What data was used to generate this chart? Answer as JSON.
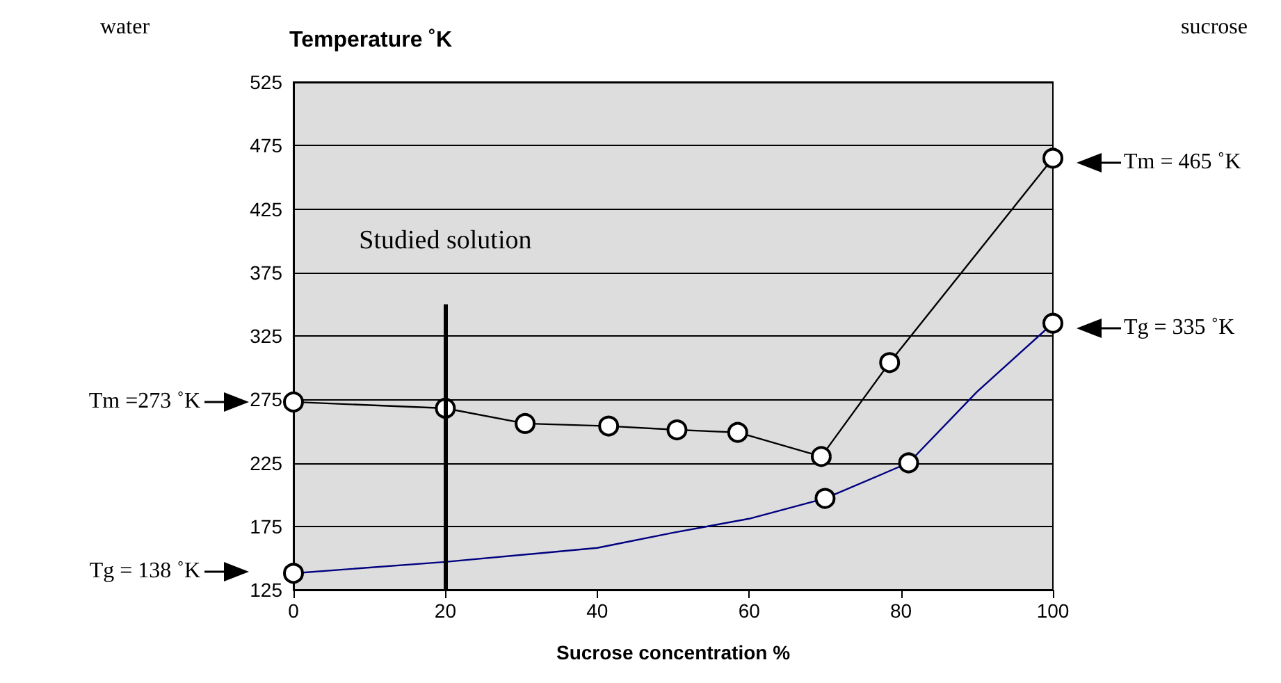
{
  "chart_data": {
    "type": "line",
    "ylabel": "Temperature ˚K",
    "xlabel": "Sucrose concentration %",
    "xlim": [
      0,
      100
    ],
    "xticks": [
      0,
      20,
      40,
      60,
      80,
      100
    ],
    "ylim": [
      125,
      525
    ],
    "yticks": [
      125,
      175,
      225,
      275,
      325,
      375,
      425,
      475,
      525
    ],
    "grid": "y",
    "series": [
      {
        "color": "#000000",
        "marker": "circle",
        "x": [
          0,
          20,
          30.5,
          41.5,
          50.5,
          58.5,
          69.5,
          78.5,
          100
        ],
        "values": [
          273,
          268,
          256,
          254,
          251,
          249,
          230,
          304,
          465
        ]
      },
      {
        "color": "#000080",
        "marker": "none",
        "x": [
          0,
          20,
          40,
          50,
          60,
          70,
          81,
          90,
          100
        ],
        "values": [
          138,
          147,
          158,
          170,
          181,
          197,
          225,
          281,
          335
        ]
      },
      {
        "type": "scatter",
        "color": "#ffffff",
        "marker": "circle",
        "x": [
          0,
          70,
          81,
          100
        ],
        "values": [
          138,
          197,
          225,
          335
        ]
      }
    ],
    "ref_lines": [
      {
        "axis": "x",
        "value": 20,
        "label": "Studied solution",
        "color": "#000000"
      }
    ],
    "annotations": [
      "water",
      "sucrose",
      "Tm =273 ˚K",
      "Tg = 138 ˚K",
      "Tm = 465 ˚K",
      "Tg = 335 ˚K"
    ]
  }
}
